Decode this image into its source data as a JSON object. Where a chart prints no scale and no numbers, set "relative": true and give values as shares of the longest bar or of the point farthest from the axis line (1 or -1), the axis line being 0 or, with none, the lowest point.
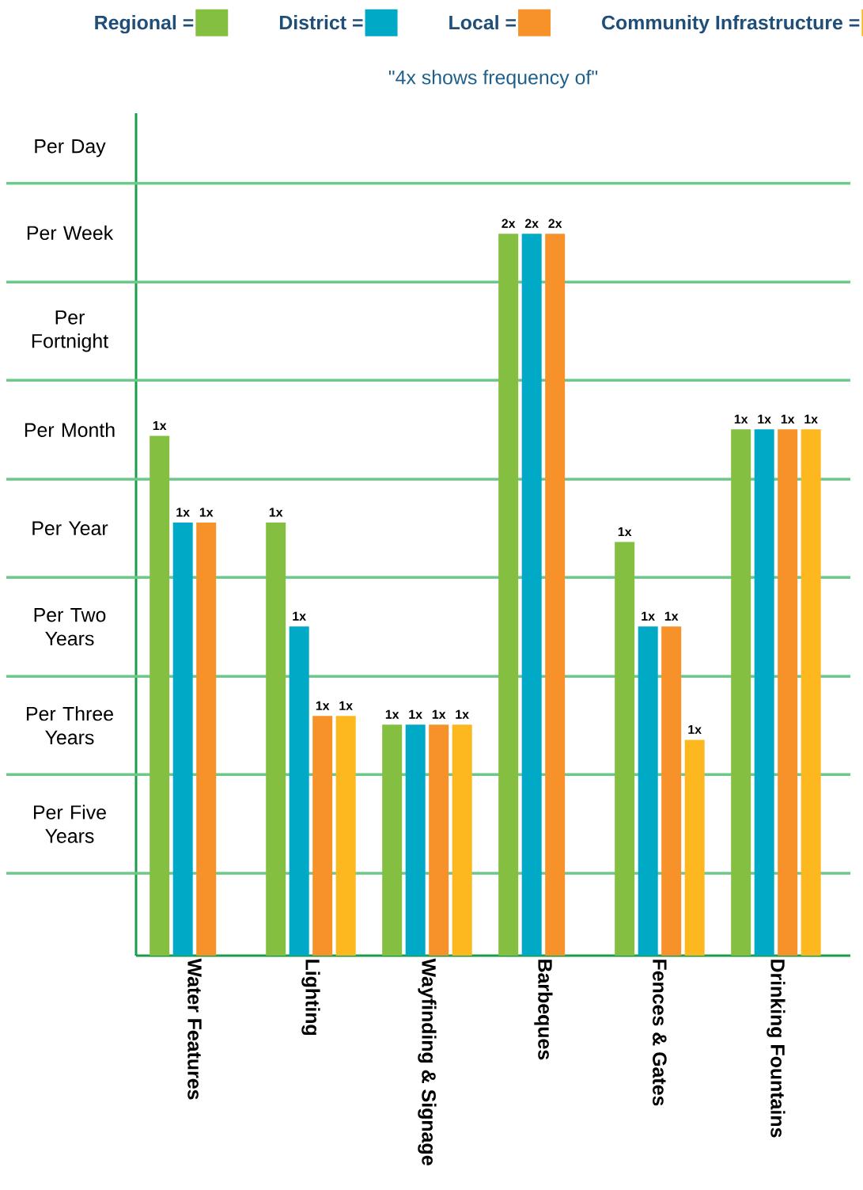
{
  "chart_data": {
    "type": "bar",
    "title": "\"4x shows frequency of\"",
    "relative": true,
    "categories": [
      "Water Features",
      "Lighting",
      "Wayfinding & Signage",
      "Barbeques",
      "Fences & Gates",
      "Drinking Fountains"
    ],
    "series": [
      {
        "name": "Regional =",
        "color": "#85bf41",
        "values": [
          0.72,
          0.6,
          0.32,
          1,
          0.573,
          0.729
        ]
      },
      {
        "name": "District =",
        "color": "#00a9c6",
        "values": [
          0.6,
          0.456,
          0.32,
          1,
          0.456,
          0.729
        ]
      },
      {
        "name": "Local =",
        "color": "#f7922a",
        "values": [
          0.6,
          0.332,
          0.32,
          1,
          0.456,
          0.729
        ]
      },
      {
        "name": "Community Infrastructure =",
        "color": "#fdb71f",
        "values": [
          null,
          0.332,
          0.32,
          null,
          0.299,
          0.729
        ]
      }
    ],
    "annotations": [
      "Per Five Years",
      "Per Three Years",
      "Per Two Years",
      "Per Year",
      "Per Month",
      "Per Fortnight",
      "Per Week",
      "Per Day",
      "1x",
      "1x",
      "1x",
      "1x",
      "1x",
      "1x",
      "1x",
      "1x",
      "1x",
      "1x",
      "1x",
      "2x",
      "2x",
      "2x",
      "1x",
      "1x",
      "1x",
      "1x",
      "1x",
      "1x",
      "1x",
      "1x"
    ],
    "ref_lines": [
      {
        "axis": "y",
        "value": 0.114,
        "color": "#6cc98a"
      },
      {
        "axis": "y",
        "value": 0.251,
        "color": "#6cc98a"
      },
      {
        "axis": "y",
        "value": 0.387,
        "color": "#6cc98a"
      },
      {
        "axis": "y",
        "value": 0.524,
        "color": "#6cc98a"
      },
      {
        "axis": "y",
        "value": 0.66,
        "color": "#6cc98a"
      },
      {
        "axis": "y",
        "value": 0.797,
        "color": "#6cc98a"
      },
      {
        "axis": "y",
        "value": 0.933,
        "color": "#6cc98a"
      },
      {
        "axis": "y",
        "value": 1.07,
        "color": "#6cc98a"
      }
    ],
    "legend": "top",
    "grid": false
  }
}
